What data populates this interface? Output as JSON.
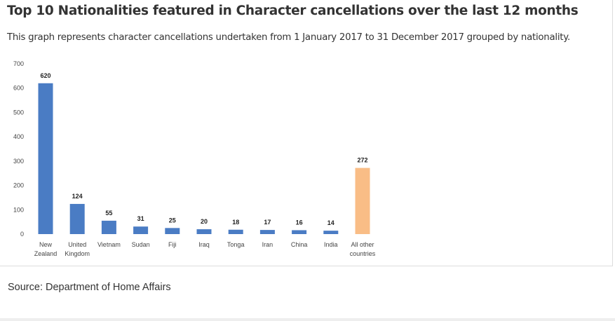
{
  "title": "Top 10 Nationalities featured in Character cancellations over the last 12 months",
  "subtitle": "This graph represents character cancellations undertaken from 1 January 2017 to 31 December 2017 grouped by nationality.",
  "source": "Source: Department of Home Affairs",
  "chart_data": {
    "type": "bar",
    "categories": [
      [
        "New",
        "Zealand"
      ],
      [
        "United",
        "Kingdom"
      ],
      [
        "Vietnam"
      ],
      [
        "Sudan"
      ],
      [
        "Fiji"
      ],
      [
        "Iraq"
      ],
      [
        "Tonga"
      ],
      [
        "Iran"
      ],
      [
        "China"
      ],
      [
        "India"
      ],
      [
        "All other",
        "countries"
      ]
    ],
    "values": [
      620,
      124,
      55,
      31,
      25,
      20,
      18,
      17,
      16,
      14,
      272
    ],
    "colors": [
      "#4a7cc4",
      "#4a7cc4",
      "#4a7cc4",
      "#4a7cc4",
      "#4a7cc4",
      "#4a7cc4",
      "#4a7cc4",
      "#4a7cc4",
      "#4a7cc4",
      "#4a7cc4",
      "#f9bd86"
    ],
    "yticks": [
      0,
      100,
      200,
      300,
      400,
      500,
      600,
      700
    ],
    "ylim": [
      0,
      700
    ],
    "grid": false,
    "data_labels": true
  }
}
